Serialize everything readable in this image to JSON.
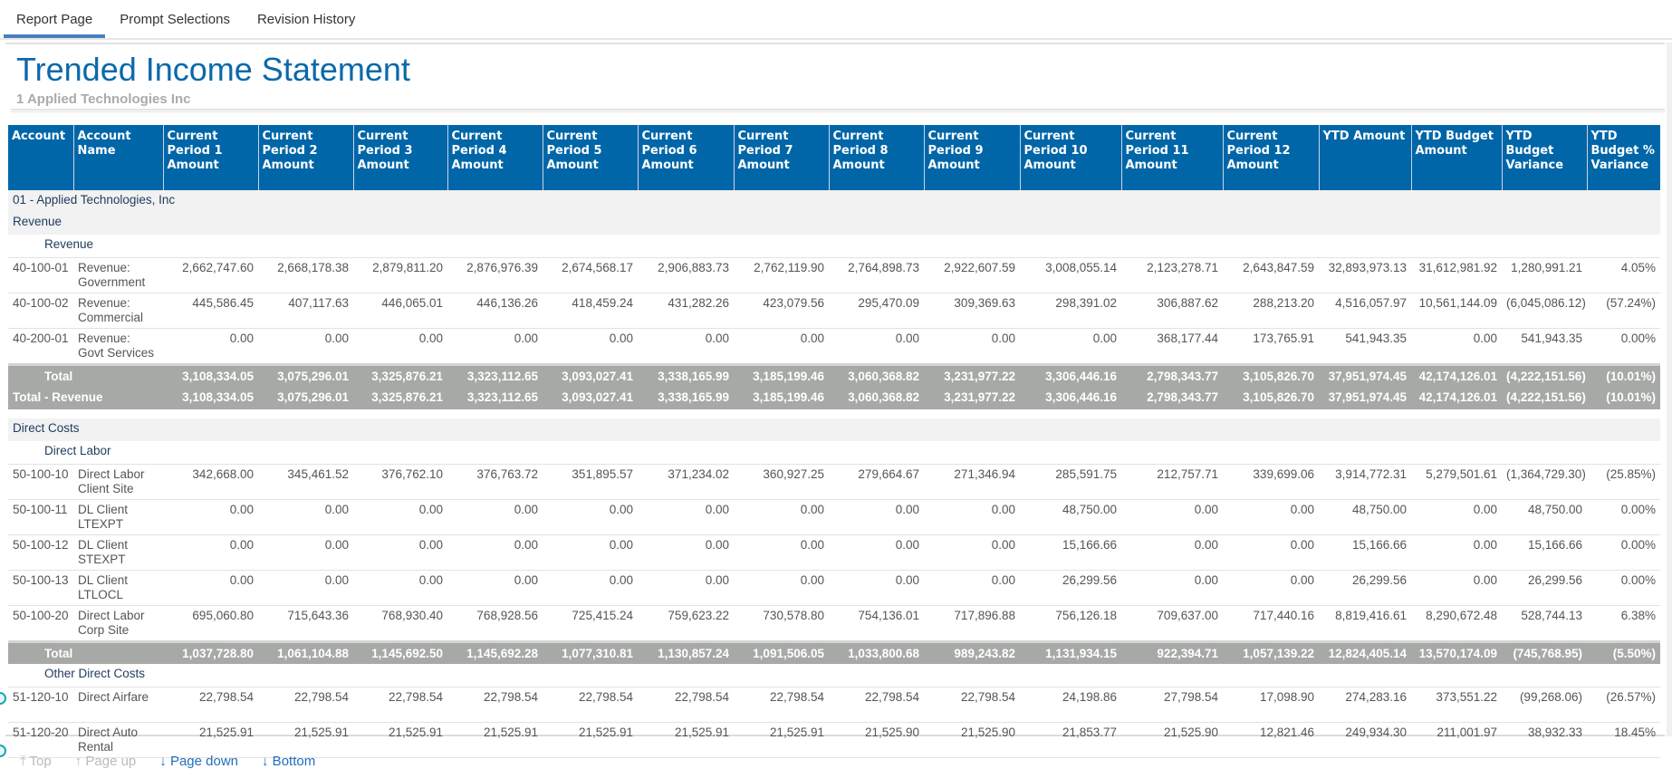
{
  "tabs": [
    "Report Page",
    "Prompt Selections",
    "Revision History"
  ],
  "report": {
    "title": "Trended Income Statement",
    "subtitle": "1   Applied Technologies Inc"
  },
  "columns": [
    "Account",
    "Account Name",
    "Current Period 1 Amount",
    "Current Period 2 Amount",
    "Current Period 3 Amount",
    "Current Period 4 Amount",
    "Current Period 5 Amount",
    "Current Period 6 Amount",
    "Current Period 7 Amount",
    "Current Period 8 Amount",
    "Current Period 9 Amount",
    "Current Period 10 Amount",
    "Current Period 11 Amount",
    "Current Period 12 Amount",
    "YTD Amount",
    "YTD Budget Amount",
    "YTD Budget Variance",
    "YTD Budget % Variance"
  ],
  "rows": [
    {
      "type": "group",
      "label": "01  - Applied Technologies, Inc"
    },
    {
      "type": "section",
      "label": "Revenue"
    },
    {
      "type": "subsection",
      "label": "Revenue"
    },
    {
      "type": "data",
      "account": "40-100-01",
      "name": "Revenue: Government",
      "values": [
        "2,662,747.60",
        "2,668,178.38",
        "2,879,811.20",
        "2,876,976.39",
        "2,674,568.17",
        "2,906,883.73",
        "2,762,119.90",
        "2,764,898.73",
        "2,922,607.59",
        "3,008,055.14",
        "2,123,278.71",
        "2,643,847.59",
        "32,893,973.13",
        "31,612,981.92",
        "1,280,991.21",
        "4.05%"
      ]
    },
    {
      "type": "data",
      "account": "40-100-02",
      "name": "Revenue: Commercial",
      "values": [
        "445,586.45",
        "407,117.63",
        "446,065.01",
        "446,136.26",
        "418,459.24",
        "431,282.26",
        "423,079.56",
        "295,470.09",
        "309,369.63",
        "298,391.02",
        "306,887.62",
        "288,213.20",
        "4,516,057.97",
        "10,561,144.09",
        "(6,045,086.12)",
        "(57.24%)"
      ]
    },
    {
      "type": "data",
      "account": "40-200-01",
      "name": "Revenue: Govt Services",
      "values": [
        "0.00",
        "0.00",
        "0.00",
        "0.00",
        "0.00",
        "0.00",
        "0.00",
        "0.00",
        "0.00",
        "0.00",
        "368,177.44",
        "173,765.91",
        "541,943.35",
        "0.00",
        "541,943.35",
        "0.00%"
      ]
    },
    {
      "type": "total",
      "first": true,
      "label": "Total",
      "values": [
        "3,108,334.05",
        "3,075,296.01",
        "3,325,876.21",
        "3,323,112.65",
        "3,093,027.41",
        "3,338,165.99",
        "3,185,199.46",
        "3,060,368.82",
        "3,231,977.22",
        "3,306,446.16",
        "2,798,343.77",
        "3,105,826.70",
        "37,951,974.45",
        "42,174,126.01",
        "(4,222,151.56)",
        "(10.01%)"
      ]
    },
    {
      "type": "total",
      "outer": true,
      "label": "Total - Revenue",
      "values": [
        "3,108,334.05",
        "3,075,296.01",
        "3,325,876.21",
        "3,323,112.65",
        "3,093,027.41",
        "3,338,165.99",
        "3,185,199.46",
        "3,060,368.82",
        "3,231,977.22",
        "3,306,446.16",
        "2,798,343.77",
        "3,105,826.70",
        "37,951,974.45",
        "42,174,126.01",
        "(4,222,151.56)",
        "(10.01%)"
      ]
    },
    {
      "type": "gap"
    },
    {
      "type": "section",
      "label": "Direct Costs"
    },
    {
      "type": "subsection",
      "label": "Direct Labor"
    },
    {
      "type": "data",
      "account": "50-100-10",
      "name": "Direct Labor Client Site",
      "values": [
        "342,668.00",
        "345,461.52",
        "376,762.10",
        "376,763.72",
        "351,895.57",
        "371,234.02",
        "360,927.25",
        "279,664.67",
        "271,346.94",
        "285,591.75",
        "212,757.71",
        "339,699.06",
        "3,914,772.31",
        "5,279,501.61",
        "(1,364,729.30)",
        "(25.85%)"
      ]
    },
    {
      "type": "data",
      "account": "50-100-11",
      "name": "DL Client LTEXPT",
      "values": [
        "0.00",
        "0.00",
        "0.00",
        "0.00",
        "0.00",
        "0.00",
        "0.00",
        "0.00",
        "0.00",
        "48,750.00",
        "0.00",
        "0.00",
        "48,750.00",
        "0.00",
        "48,750.00",
        "0.00%"
      ]
    },
    {
      "type": "data",
      "account": "50-100-12",
      "name": "DL Client STEXPT",
      "values": [
        "0.00",
        "0.00",
        "0.00",
        "0.00",
        "0.00",
        "0.00",
        "0.00",
        "0.00",
        "0.00",
        "15,166.66",
        "0.00",
        "0.00",
        "15,166.66",
        "0.00",
        "15,166.66",
        "0.00%"
      ]
    },
    {
      "type": "data",
      "account": "50-100-13",
      "name": "DL Client LTLOCL",
      "values": [
        "0.00",
        "0.00",
        "0.00",
        "0.00",
        "0.00",
        "0.00",
        "0.00",
        "0.00",
        "0.00",
        "26,299.56",
        "0.00",
        "0.00",
        "26,299.56",
        "0.00",
        "26,299.56",
        "0.00%"
      ]
    },
    {
      "type": "data",
      "account": "50-100-20",
      "name": "Direct Labor Corp Site",
      "values": [
        "695,060.80",
        "715,643.36",
        "768,930.40",
        "768,928.56",
        "725,415.24",
        "759,623.22",
        "730,578.80",
        "754,136.01",
        "717,896.88",
        "756,126.18",
        "709,637.00",
        "717,440.16",
        "8,819,416.61",
        "8,290,672.48",
        "528,744.13",
        "6.38%"
      ]
    },
    {
      "type": "total",
      "first": true,
      "label": "Total",
      "values": [
        "1,037,728.80",
        "1,061,104.88",
        "1,145,692.50",
        "1,145,692.28",
        "1,077,310.81",
        "1,130,857.24",
        "1,091,506.05",
        "1,033,800.68",
        "989,243.82",
        "1,131,934.15",
        "922,394.71",
        "1,057,139.22",
        "12,824,405.14",
        "13,570,174.09",
        "(745,768.95)",
        "(5.50%)"
      ]
    },
    {
      "type": "subsection",
      "label": "Other Direct Costs"
    },
    {
      "type": "data",
      "account": "51-120-10",
      "name": "Direct Airfare",
      "values": [
        "22,798.54",
        "22,798.54",
        "22,798.54",
        "22,798.54",
        "22,798.54",
        "22,798.54",
        "22,798.54",
        "22,798.54",
        "22,798.54",
        "24,198.86",
        "27,798.54",
        "17,098.90",
        "274,283.16",
        "373,551.22",
        "(99,268.06)",
        "(26.57%)"
      ]
    },
    {
      "type": "data",
      "account": "51-120-20",
      "name": "Direct Auto Rental",
      "values": [
        "21,525.91",
        "21,525.91",
        "21,525.91",
        "21,525.91",
        "21,525.91",
        "21,525.91",
        "21,525.91",
        "21,525.90",
        "21,525.90",
        "21,853.77",
        "21,525.90",
        "12,821.46",
        "249,934.30",
        "211,001.97",
        "38,932.33",
        "18.45%"
      ]
    }
  ],
  "pager": {
    "top": "⤒ Top",
    "page_up": "↑ Page up",
    "page_down": "↓ Page down",
    "bottom": "↓ Bottom"
  },
  "colors": {
    "header": "#0066a8",
    "title": "#0a69a9",
    "total_row": "#a6a9a6",
    "accent": "#4a7fc1"
  }
}
